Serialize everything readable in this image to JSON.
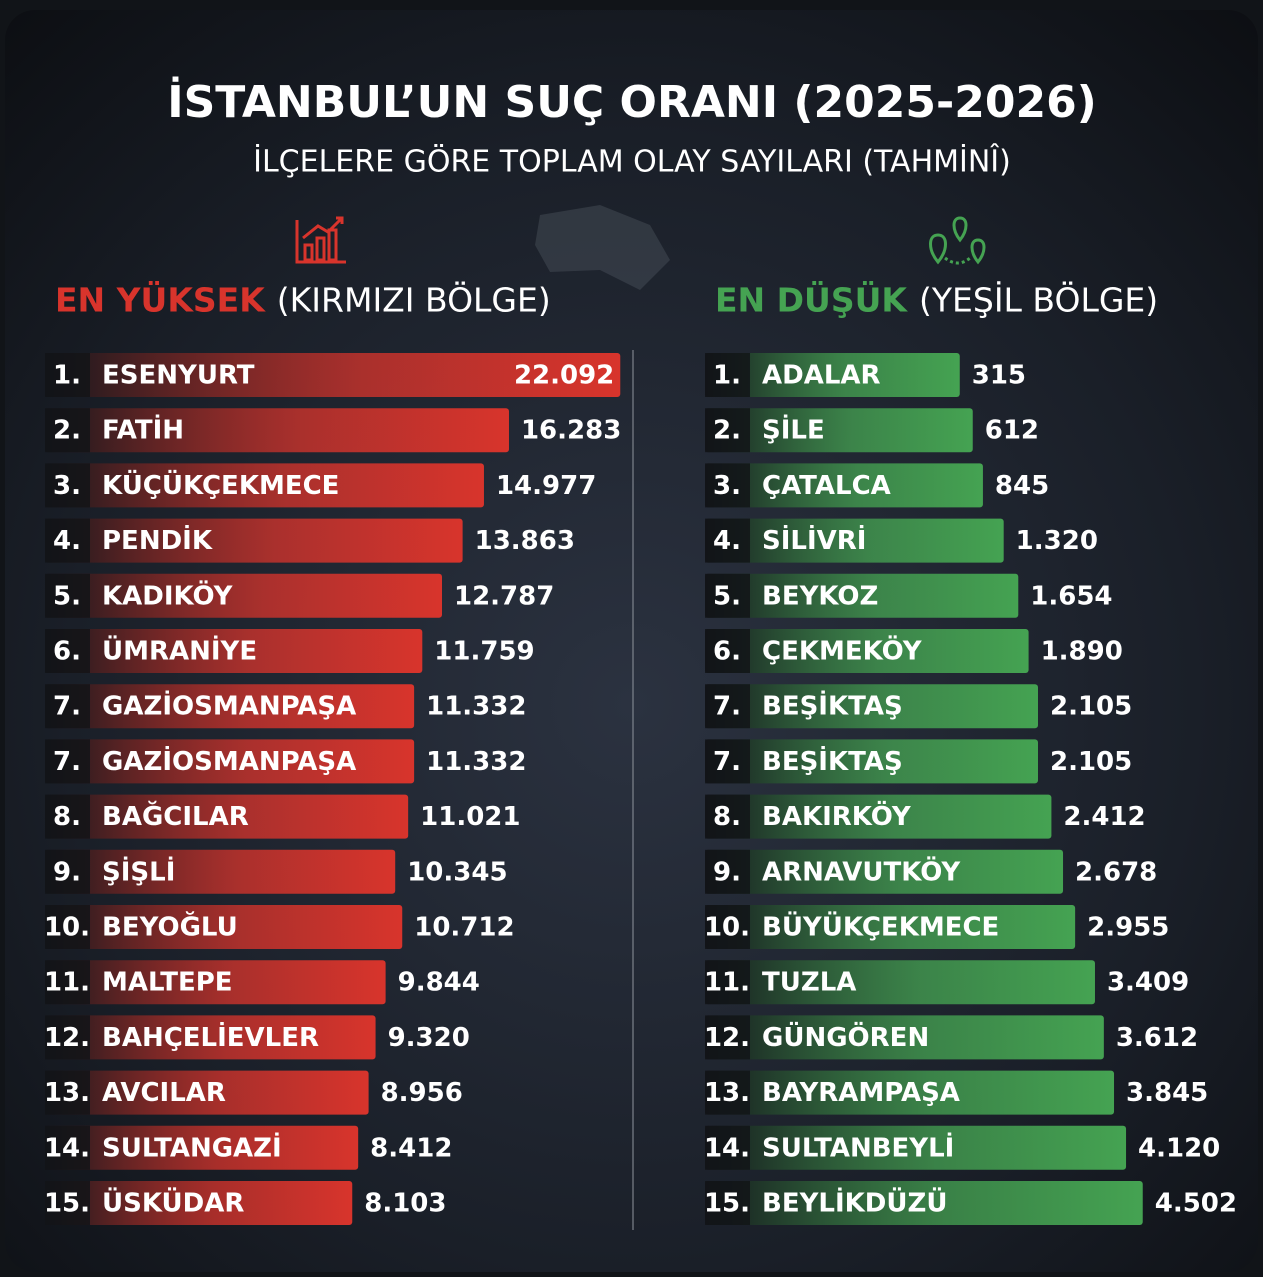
{
  "title": "İSTANBUL’UN SUÇ ORANI (2025-2026)",
  "subtitle": "İLÇELERE GÖRE TOPLAM OLAY SAYILARI (TAHMİNÎ)",
  "chart_data": [
    {
      "type": "bar",
      "title": "EN YÜKSEK",
      "subtitle": "(KIRMIZI BÖLGE)",
      "color": "#d8342c",
      "ranks": [
        "1.",
        "2.",
        "3.",
        "4.",
        "5.",
        "6.",
        "7.",
        "7.",
        "8.",
        "9.",
        "10.",
        "11.",
        "12.",
        "13.",
        "14.",
        "15."
      ],
      "categories": [
        "ESENYURT",
        "FATİH",
        "KÜÇÜKÇEKMECE",
        "PENDİK",
        "KADIKÖY",
        "ÜMRANİYE",
        "GAZİOSMANPAŞA",
        "GAZİOSMANPAŞA",
        "BAĞCILAR",
        "ŞİŞLİ",
        "BEYOĞLU",
        "MALTEPE",
        "BAHÇELİEVLER",
        "AVCILAR",
        "SULTANGAZİ",
        "ÜSKÜDAR"
      ],
      "values": [
        22092,
        16283,
        14977,
        13863,
        12787,
        11759,
        11332,
        11332,
        11021,
        10345,
        10712,
        9844,
        9320,
        8956,
        8412,
        8103
      ],
      "value_labels": [
        "22.092",
        "16.283",
        "14.977",
        "13.863",
        "12.787",
        "11.759",
        "11.332",
        "11.332",
        "11.021",
        "10.345",
        "10.712",
        "9.844",
        "9.320",
        "8.956",
        "8.412",
        "8.103"
      ]
    },
    {
      "type": "bar",
      "title": "EN DÜŞÜK",
      "subtitle": "(YEŞİL BÖLGE)",
      "color": "#45a352",
      "ranks": [
        "1.",
        "2.",
        "3.",
        "4.",
        "5.",
        "6.",
        "7.",
        "7.",
        "8.",
        "9.",
        "10.",
        "11.",
        "12.",
        "13.",
        "14.",
        "15."
      ],
      "categories": [
        "ADALAR",
        "ŞİLE",
        "ÇATALCA",
        "SİLİVRİ",
        "BEYKOZ",
        "ÇEKMEKÖY",
        "BEŞİKTAŞ",
        "BEŞİKTAŞ",
        "BAKIRKÖY",
        "ARNAVUTKÖY",
        "BÜYÜKÇEKMECE",
        "TUZLA",
        "GÜNGÖREN",
        "BAYRAMPAŞA",
        "SULTANBEYLİ",
        "BEYLİKDÜZÜ"
      ],
      "values": [
        315,
        612,
        845,
        1320,
        1654,
        1890,
        2105,
        2105,
        2412,
        2678,
        2955,
        3409,
        3612,
        3845,
        4120,
        4502
      ],
      "value_labels": [
        "315",
        "612",
        "845",
        "1.320",
        "1.654",
        "1.890",
        "2.105",
        "2.105",
        "2.412",
        "2.678",
        "2.955",
        "3.409",
        "3.612",
        "3.845",
        "4.120",
        "4.502"
      ]
    }
  ]
}
